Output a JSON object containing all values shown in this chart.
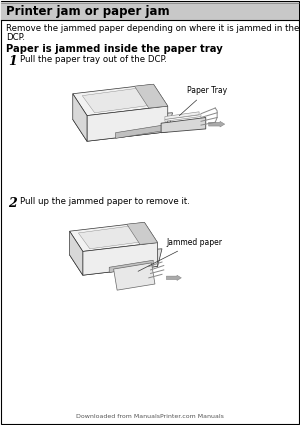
{
  "bg_color": "#ffffff",
  "title": "Printer jam or paper jam",
  "title_fontsize": 8.5,
  "subtitle_line1": "Remove the jammed paper depending on where it is jammed in the",
  "subtitle_line2": "DCP.",
  "subtitle_fontsize": 6.2,
  "section_title": "Paper is jammed inside the paper tray",
  "section_fontsize": 7.2,
  "step1_num": "1",
  "step1_text": "Pull the paper tray out of the DCP.",
  "step1_label": "Paper Tray",
  "step2_num": "2",
  "step2_text": "Pull up the jammed paper to remove it.",
  "step2_label": "Jammed paper",
  "step_fontsize": 6.2,
  "label_fontsize": 5.5,
  "num_fontsize": 9,
  "footer": "Downloaded from ManualsPrinter.com Manuals",
  "footer_fontsize": 4.5,
  "line_color": "#333333",
  "light_gray": "#d8d8d8",
  "mid_gray": "#aaaaaa",
  "title_bar_color": "#c8c8c8"
}
